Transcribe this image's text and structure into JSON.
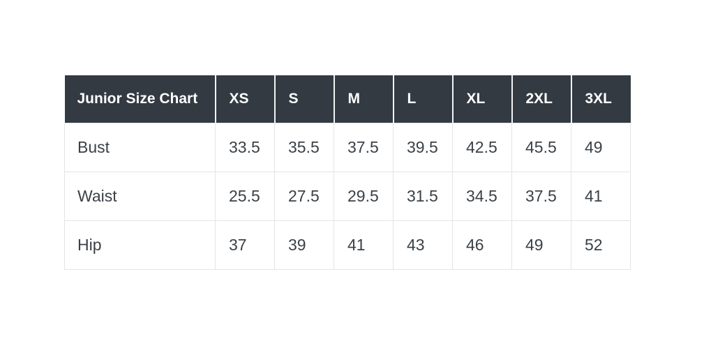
{
  "theme": {
    "page_bg": "#ffffff",
    "header_bg": "#333a42",
    "header_text": "#ffffff",
    "header_divider": "#f2f3f5",
    "body_text": "#3a4147",
    "border": "#e2e4e7",
    "row_bg": "#ffffff"
  },
  "chart_data": {
    "type": "table",
    "title": "Junior Size Chart",
    "header": [
      "Junior Size Chart",
      "XS",
      "S",
      "M",
      "L",
      "XL",
      "2XL",
      "3XL"
    ],
    "rows": [
      {
        "label": "Bust",
        "values": [
          33.5,
          35.5,
          37.5,
          39.5,
          42.5,
          45.5,
          49
        ]
      },
      {
        "label": "Waist",
        "values": [
          25.5,
          27.5,
          29.5,
          31.5,
          34.5,
          37.5,
          41
        ]
      },
      {
        "label": "Hip",
        "values": [
          37,
          39,
          41,
          43,
          46,
          49,
          52
        ]
      }
    ],
    "layout": {
      "grid": true,
      "header_position": "top-row",
      "value_alignment": "left"
    }
  }
}
